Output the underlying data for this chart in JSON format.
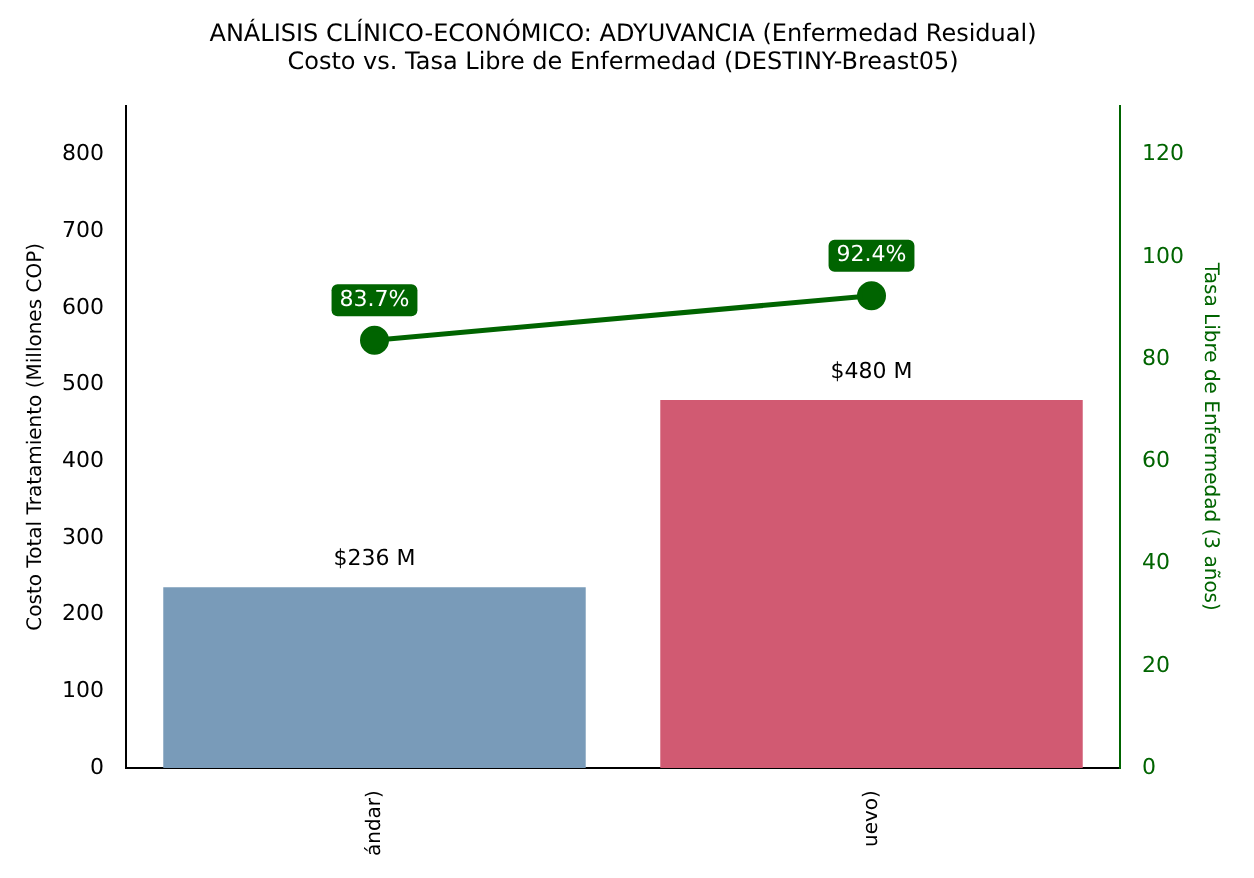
{
  "chart_data": {
    "type": "bar",
    "title": "ANÁLISIS CLÍNICO-ECONÓMICO: ADYUVANCIA (Enfermedad Residual)",
    "subtitle": "Costo vs. Tasa Libre de Enfermedad (DESTINY-Breast05)",
    "ylabel": "Costo Total Tratamiento (Millones COP)",
    "y2label": "Tasa Libre de Enfermedad (3 años)",
    "categories": [
      "ándar)",
      "uevo)"
    ],
    "series": [
      {
        "colors": [
          "#799bb9",
          "#d15a72"
        ],
        "values": [
          236,
          480
        ],
        "value_labels": [
          "$236 M",
          "$480 M"
        ]
      },
      {
        "type": "line",
        "axis": "y2",
        "color": "#006400",
        "marker": "circle",
        "values": [
          83.7,
          92.4
        ],
        "value_labels": [
          "83.7%",
          "92.4%"
        ]
      }
    ],
    "ylim": [
      0,
      864
    ],
    "yticks": [
      0,
      100,
      200,
      300,
      400,
      500,
      600,
      700,
      800
    ],
    "y2lim": [
      0,
      129.6
    ],
    "y2ticks": [
      0,
      20,
      40,
      60,
      80,
      100,
      120
    ],
    "grid": false,
    "legend": false
  }
}
